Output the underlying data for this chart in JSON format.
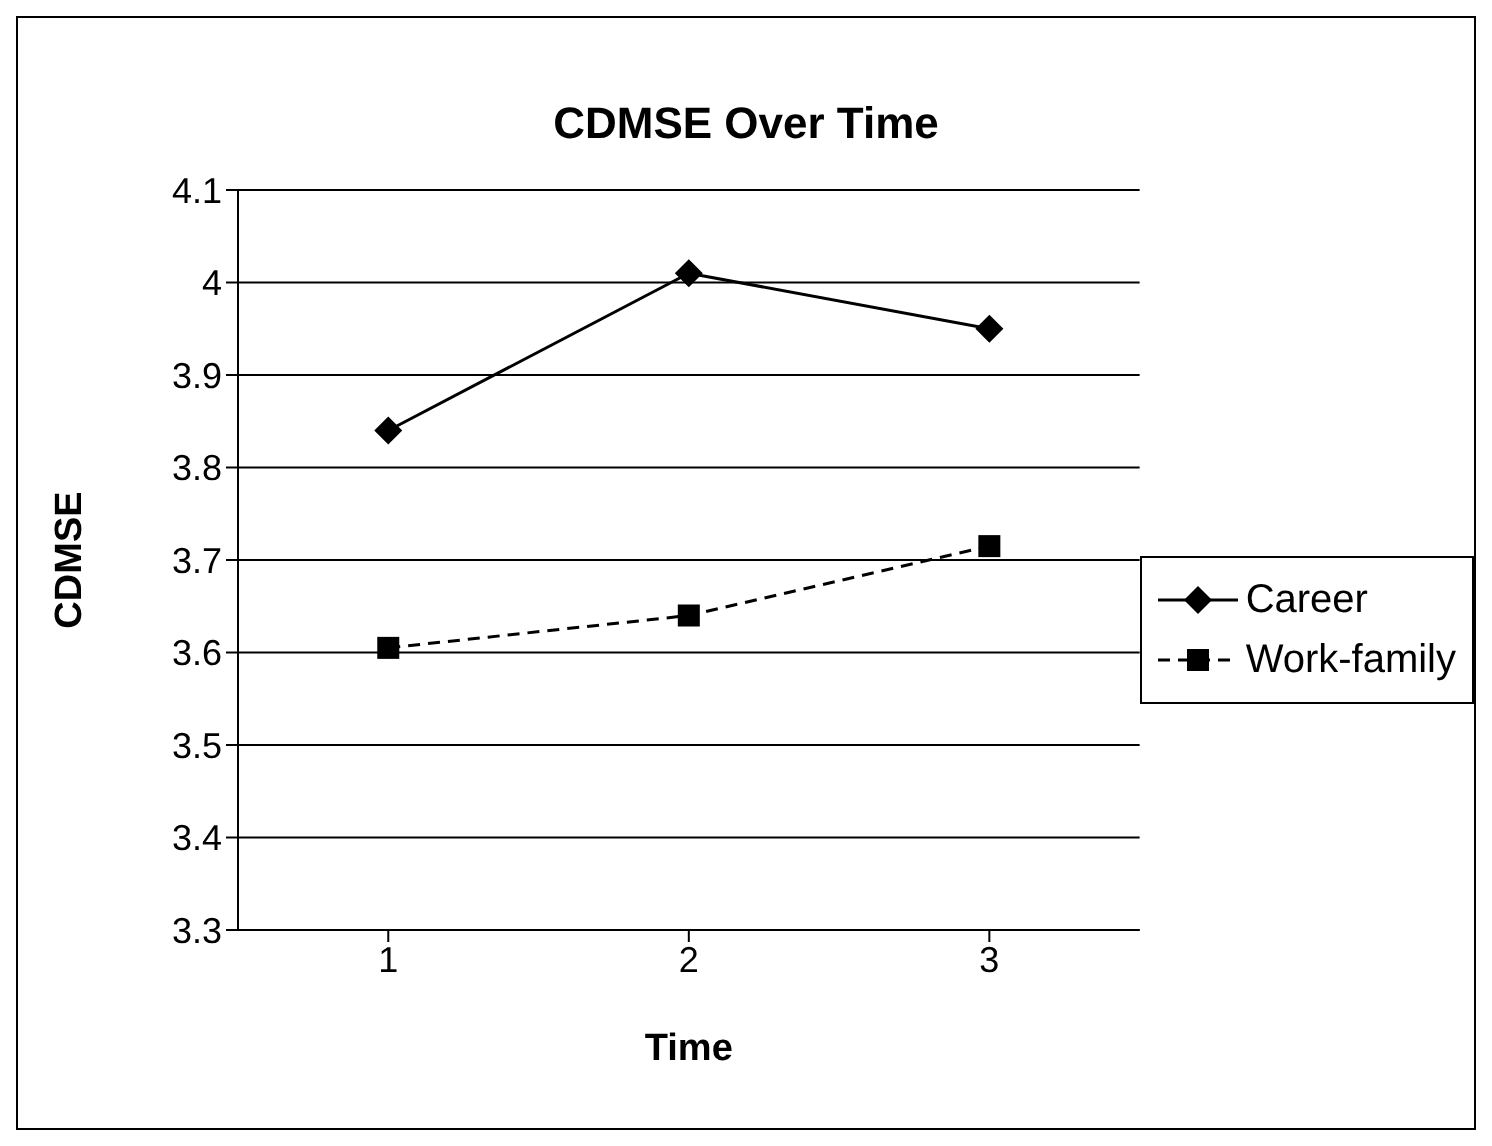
{
  "chart_data": {
    "type": "line",
    "title": "CDMSE Over Time",
    "xlabel": "Time",
    "ylabel": "CDMSE",
    "categories": [
      "1",
      "2",
      "3"
    ],
    "series": [
      {
        "name": "Career",
        "color": "#000000",
        "values": [
          3.84,
          4.01,
          3.95
        ],
        "marker": "diamond",
        "line_style": "solid"
      },
      {
        "name": "Work-family",
        "color": "#000000",
        "values": [
          3.605,
          3.64,
          3.715
        ],
        "marker": "square",
        "line_style": "dashed"
      }
    ],
    "ylim": [
      3.3,
      4.1
    ],
    "yticks": [
      3.3,
      3.4,
      3.5,
      3.6,
      3.7,
      3.8,
      3.9,
      4,
      4.1
    ],
    "grid": "y",
    "legend": "right"
  }
}
